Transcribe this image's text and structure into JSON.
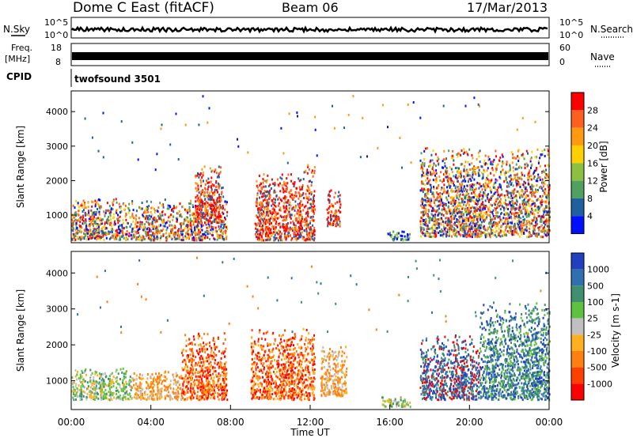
{
  "header": {
    "station": "Dome C East (fitACF)",
    "beam": "Beam 06",
    "date": "17/Mar/2013"
  },
  "strip_labels": {
    "nsky": "N.Sky",
    "nsearch": "N.Search",
    "freq_top": "Freq.",
    "freq_unit": "[MHz]",
    "nave": "Nave",
    "cpid": "CPID",
    "cpid_value": "twofsound 3501",
    "sky_ticks": [
      "10^5",
      "10^0"
    ],
    "search_ticks": [
      "10^5",
      "10^0"
    ],
    "freq_ticks": [
      "18",
      "8"
    ],
    "nave_ticks": [
      "60",
      "0"
    ]
  },
  "x_axis": {
    "label": "Time UT",
    "ticks": [
      "00:00",
      "04:00",
      "08:00",
      "12:00",
      "16:00",
      "20:00",
      "00:00"
    ]
  },
  "chart_data": [
    {
      "type": "heatmap",
      "title": "",
      "xlabel": "Time UT",
      "ylabel": "Slant Range [km]",
      "x_range_hours": [
        0,
        24
      ],
      "ylim": [
        200,
        4600
      ],
      "y_ticks": [
        "1000",
        "2000",
        "3000",
        "4000"
      ],
      "colorbar": {
        "label": "Power [dB]",
        "ticks": [
          "28",
          "24",
          "20",
          "16",
          "12",
          "8",
          "4"
        ],
        "colors": [
          "#ff0000",
          "#ff6020",
          "#ff9a10",
          "#ffd000",
          "#8cc040",
          "#50a060",
          "#2060a0",
          "#0010ff"
        ]
      },
      "series": [
        {
          "t0": 0.0,
          "t1": 7.8,
          "r0": 300,
          "r1": 1500,
          "level": "mixed"
        },
        {
          "t0": 6.2,
          "t1": 7.6,
          "r0": 800,
          "r1": 2500,
          "level": "high"
        },
        {
          "t0": 9.2,
          "t1": 11.7,
          "r0": 300,
          "r1": 2300,
          "level": "high"
        },
        {
          "t0": 11.7,
          "t1": 12.2,
          "r0": 300,
          "r1": 2500,
          "level": "high"
        },
        {
          "t0": 12.8,
          "t1": 13.5,
          "r0": 700,
          "r1": 1800,
          "level": "high"
        },
        {
          "t0": 15.8,
          "t1": 17.0,
          "r0": 300,
          "r1": 600,
          "level": "low"
        },
        {
          "t0": 17.5,
          "t1": 24.0,
          "r0": 400,
          "r1": 3000,
          "level": "mixed"
        }
      ]
    },
    {
      "type": "heatmap",
      "title": "",
      "xlabel": "Time UT",
      "ylabel": "Slant Range [km]",
      "x_range_hours": [
        0,
        24
      ],
      "ylim": [
        200,
        4600
      ],
      "y_ticks": [
        "1000",
        "2000",
        "3000",
        "4000"
      ],
      "colorbar": {
        "label": "Velocity [m s-1]",
        "ticks": [
          "1000",
          "500",
          "100",
          "25",
          "-25",
          "-100",
          "-500",
          "-1000"
        ],
        "colors": [
          "#2040c0",
          "#3070b0",
          "#409070",
          "#60c040",
          "#c0c0c0",
          "#ffb020",
          "#ff8010",
          "#ff4000",
          "#ff0000"
        ]
      },
      "series": [
        {
          "t0": 0.0,
          "t1": 3.0,
          "r0": 500,
          "r1": 1400,
          "level": "green"
        },
        {
          "t0": 3.0,
          "t1": 5.5,
          "r0": 500,
          "r1": 1300,
          "level": "orange"
        },
        {
          "t0": 5.5,
          "t1": 7.8,
          "r0": 500,
          "r1": 2400,
          "level": "red"
        },
        {
          "t0": 9.0,
          "t1": 12.2,
          "r0": 500,
          "r1": 2500,
          "level": "red"
        },
        {
          "t0": 12.5,
          "t1": 13.8,
          "r0": 600,
          "r1": 2000,
          "level": "orange"
        },
        {
          "t0": 15.5,
          "t1": 17.0,
          "r0": 300,
          "r1": 600,
          "level": "green"
        },
        {
          "t0": 17.5,
          "t1": 20.5,
          "r0": 500,
          "r1": 2300,
          "level": "blue"
        },
        {
          "t0": 20.5,
          "t1": 24.0,
          "r0": 500,
          "r1": 3200,
          "level": "teal"
        }
      ]
    }
  ]
}
